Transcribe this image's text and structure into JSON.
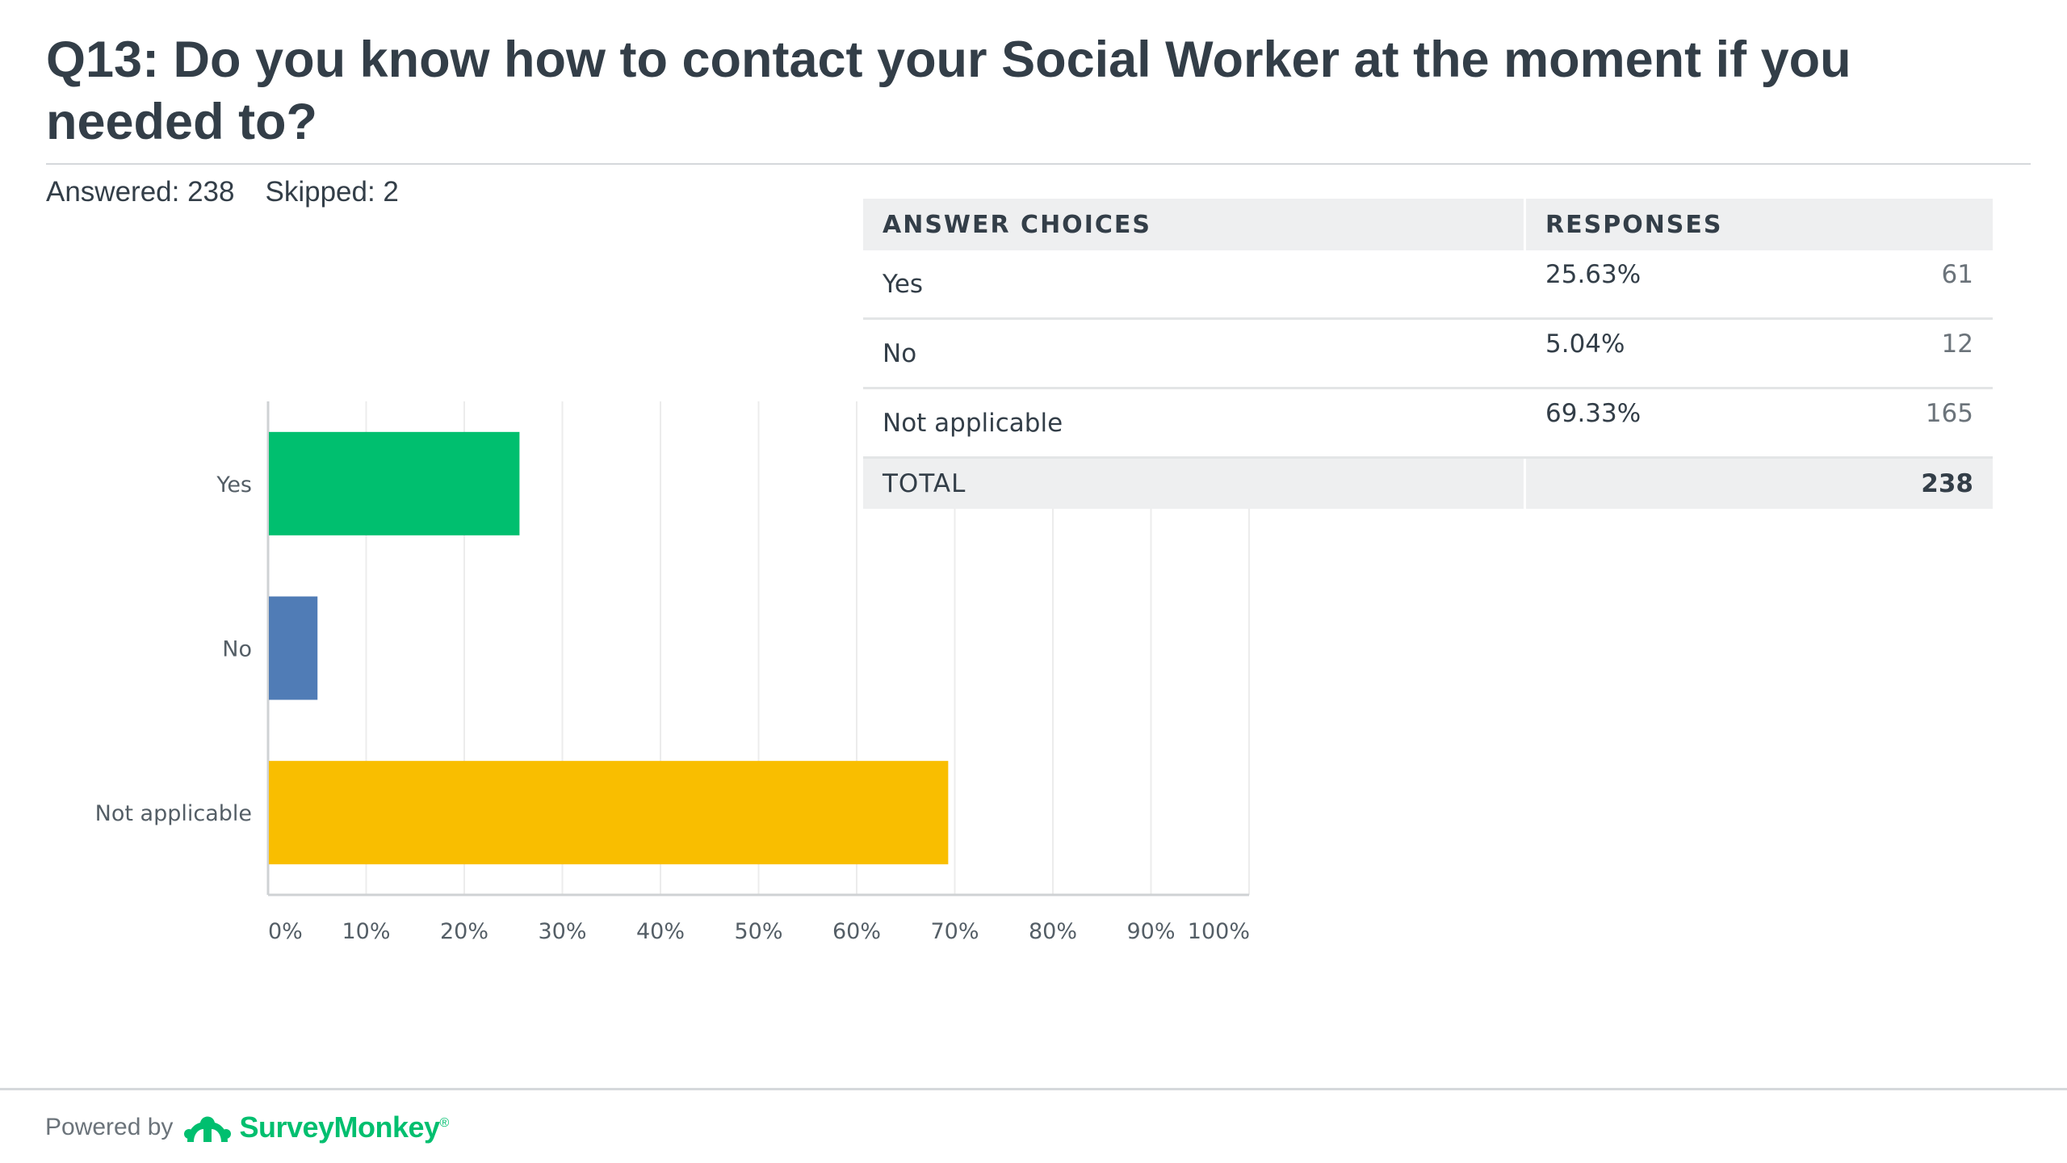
{
  "question": {
    "title": "Q13: Do you know how to contact your Social Worker at the moment if you needed to?",
    "answered": "Answered: 238",
    "skipped": "Skipped: 2"
  },
  "chart_data": {
    "type": "bar",
    "orientation": "horizontal",
    "categories": [
      "Yes",
      "No",
      "Not applicable"
    ],
    "values": [
      25.63,
      5.04,
      69.33
    ],
    "colors": [
      "#00bf6f",
      "#507cb6",
      "#f9be00"
    ],
    "xlim": [
      0,
      100
    ],
    "xticks": [
      "0%",
      "10%",
      "20%",
      "30%",
      "40%",
      "50%",
      "60%",
      "70%",
      "80%",
      "90%",
      "100%"
    ],
    "grid": true
  },
  "table": {
    "headers": {
      "choice": "ANSWER CHOICES",
      "responses": "RESPONSES"
    },
    "rows": [
      {
        "choice": "Yes",
        "percent": "25.63%",
        "count": "61"
      },
      {
        "choice": "No",
        "percent": "5.04%",
        "count": "12"
      },
      {
        "choice": "Not applicable",
        "percent": "69.33%",
        "count": "165"
      }
    ],
    "total": {
      "label": "TOTAL",
      "count": "238"
    }
  },
  "footer": {
    "powered_by": "Powered by",
    "brand": "SurveyMonkey",
    "brand_mark": "®",
    "logo_icon": "surveymonkey-logo-icon",
    "brand_color": "#00bf6f"
  }
}
